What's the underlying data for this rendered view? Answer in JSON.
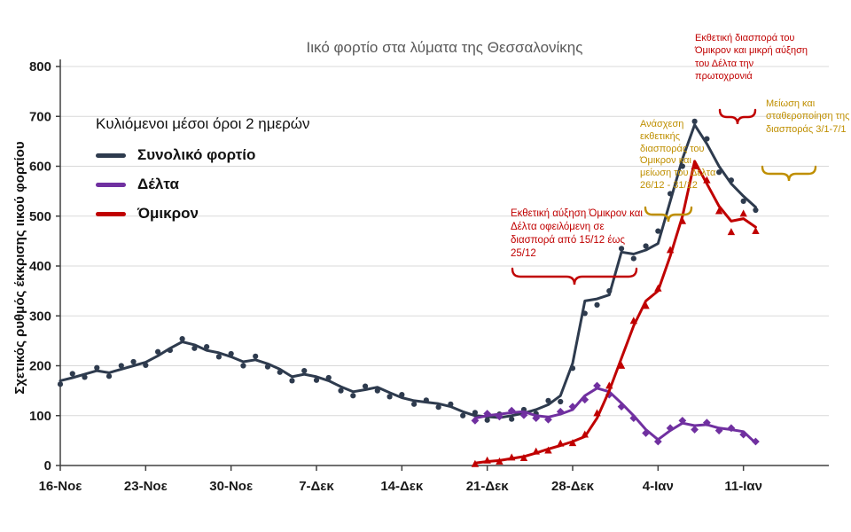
{
  "legend": {
    "heading": "Κυλιόμενοι μέσοι όροι 2 ημερών"
  },
  "annotations": [
    {
      "text": "Εκθετική αύξηση Όμικρον και Δέλτα οφειλόμενη σε διασπορά από 15/12 έως 25/12",
      "color": "#c00000"
    },
    {
      "text": "Ανάσχεση εκθετικής διασποράς του Όμικρον και μείωση του Δέλτα 26/12 - 31/12",
      "color": "#bf8f00"
    },
    {
      "text": "Εκθετική διασπορά του Όμικρον και μικρή αύξηση του Δέλτα την πρωτοχρονιά",
      "color": "#c00000"
    },
    {
      "text": "Μείωση και σταθεροποίηση της διασποράς 3/1-7/1",
      "color": "#bf8f00"
    }
  ],
  "chart_data": {
    "type": "line",
    "title": "Ιικό φορτίο στα λύματα της Θεσσαλονίκης",
    "ylabel": "Σχετικός ρυθμός έκκρισης ιικού φορτίου",
    "ylim": [
      0,
      800
    ],
    "ytick_step": 100,
    "grid": "horizontal",
    "legend_position": "upper-left",
    "x_max_day": 63,
    "x_tick_days": [
      0,
      7,
      14,
      21,
      28,
      35,
      42,
      49,
      56
    ],
    "x_tick_labels": [
      "16-Νοε",
      "23-Νοε",
      "30-Νοε",
      "7-Δεκ",
      "14-Δεκ",
      "21-Δεκ",
      "28-Δεκ",
      "4-Ιαν",
      "11-Ιαν"
    ],
    "series": [
      {
        "name": "Συνολικό φορτίο",
        "color": "#2e3b4e",
        "marker": "circle",
        "start_day": 0,
        "values": [
          170,
          176,
          183,
          190,
          186,
          193,
          200,
          207,
          220,
          235,
          248,
          242,
          231,
          226,
          218,
          208,
          212,
          204,
          193,
          178,
          183,
          178,
          170,
          158,
          148,
          152,
          157,
          146,
          136,
          130,
          127,
          124,
          118,
          108,
          100,
          98,
          96,
          100,
          105,
          112,
          122,
          140,
          205,
          330,
          334,
          342,
          428,
          424,
          432,
          445,
          530,
          615,
          683,
          645,
          600,
          565,
          540,
          518
        ],
        "scatter": [
          163,
          184,
          177,
          196,
          179,
          200,
          208,
          201,
          228,
          231,
          254,
          235,
          238,
          218,
          224,
          200,
          219,
          198,
          187,
          170,
          190,
          171,
          176,
          150,
          140,
          159,
          150,
          138,
          142,
          123,
          131,
          117,
          123,
          100,
          106,
          91,
          103,
          93,
          112,
          104,
          130,
          128,
          195,
          305,
          322,
          350,
          435,
          415,
          440,
          470,
          545,
          600,
          690,
          655,
          588,
          572,
          530,
          512
        ]
      },
      {
        "name": "Δέλτα",
        "color": "#7030a0",
        "marker": "diamond",
        "start_day": 34,
        "values": [
          95,
          100,
          103,
          106,
          108,
          100,
          97,
          103,
          112,
          140,
          155,
          148,
          125,
          100,
          72,
          52,
          70,
          85,
          80,
          82,
          75,
          72,
          68,
          45
        ],
        "scatter": [
          90,
          104,
          98,
          110,
          101,
          95,
          92,
          108,
          118,
          132,
          160,
          142,
          118,
          95,
          65,
          48,
          75,
          90,
          72,
          86,
          70,
          75,
          62,
          48
        ]
      },
      {
        "name": "Όμικρον",
        "color": "#c00000",
        "marker": "triangle",
        "start_day": 34,
        "values": [
          5,
          8,
          10,
          14,
          18,
          25,
          33,
          40,
          48,
          58,
          95,
          150,
          215,
          280,
          330,
          350,
          420,
          500,
          610,
          565,
          520,
          490,
          495,
          478
        ],
        "scatter": [
          3,
          10,
          8,
          16,
          15,
          28,
          30,
          44,
          45,
          62,
          105,
          160,
          200,
          290,
          320,
          355,
          432,
          490,
          600,
          572,
          510,
          468,
          505,
          470
        ]
      }
    ]
  }
}
